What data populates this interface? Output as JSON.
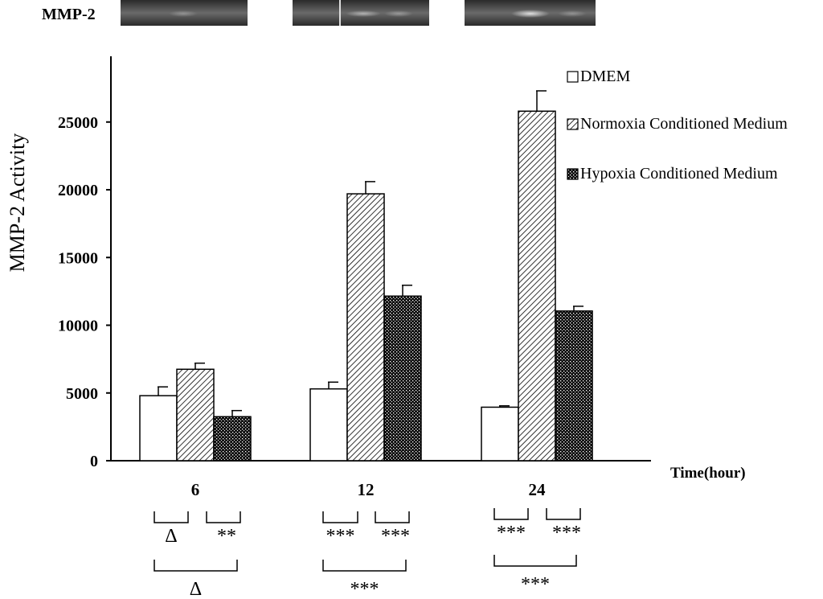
{
  "gel": {
    "label": "MMP-2"
  },
  "chart_data": {
    "type": "bar",
    "ylabel": "MMP-2 Activity",
    "xlabel": "Time(hour)",
    "ylim": [
      0,
      30000
    ],
    "yticks": [
      "0",
      "5000",
      "10000",
      "15000",
      "20000",
      "25000"
    ],
    "categories": [
      "6",
      "12",
      "24"
    ],
    "legend_position": "top-right",
    "series": [
      {
        "name": "DMEM",
        "pattern": "white",
        "values": [
          4800,
          5300,
          3950
        ],
        "errors": [
          650,
          500,
          100
        ]
      },
      {
        "name": "Normoxia Conditioned Medium",
        "pattern": "hatch",
        "values": [
          6750,
          19700,
          25800
        ],
        "errors": [
          450,
          900,
          1500
        ]
      },
      {
        "name": "Hypoxia Conditioned Medium",
        "pattern": "dots",
        "values": [
          3250,
          12150,
          11050
        ],
        "errors": [
          450,
          800,
          350
        ]
      }
    ],
    "significance": [
      {
        "group": "6",
        "left": "Δ",
        "right": "**",
        "bottom": "Δ"
      },
      {
        "group": "12",
        "left": "***",
        "right": "***",
        "bottom": "***"
      },
      {
        "group": "24",
        "left": "***",
        "right": "***",
        "bottom": "***"
      }
    ]
  }
}
